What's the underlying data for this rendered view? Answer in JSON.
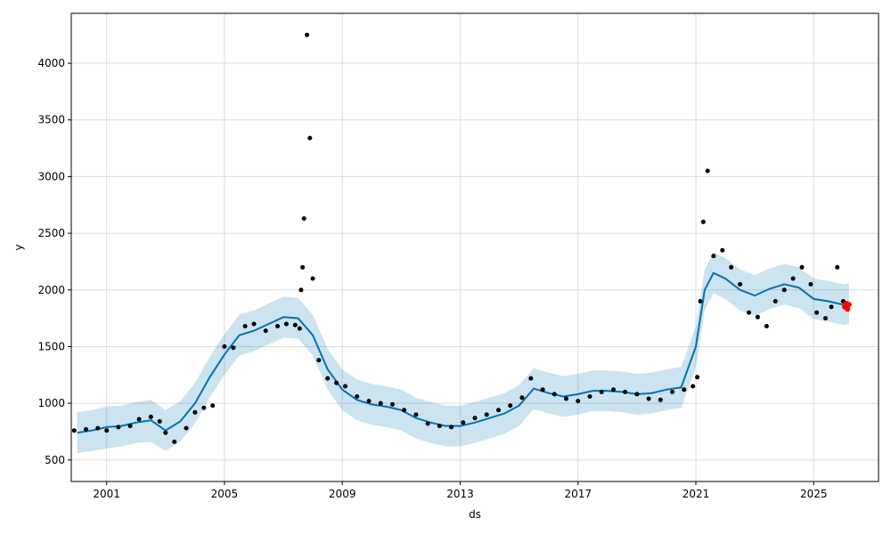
{
  "chart_data": {
    "type": "line",
    "title": "",
    "xlabel": "ds",
    "ylabel": "y",
    "xlim": [
      1999.8,
      2027.2
    ],
    "ylim": [
      310,
      4440
    ],
    "grid": true,
    "x_ticks": [
      2001,
      2005,
      2009,
      2013,
      2017,
      2021,
      2025
    ],
    "x_tick_labels": [
      "2001",
      "2005",
      "2009",
      "2013",
      "2017",
      "2021",
      "2025"
    ],
    "y_ticks": [
      500,
      1000,
      1500,
      2000,
      2500,
      3000,
      3500,
      4000
    ],
    "y_tick_labels": [
      "500",
      "1000",
      "1500",
      "2000",
      "2500",
      "3000",
      "3500",
      "4000"
    ],
    "colors": {
      "observed": "#000000",
      "forecast_line": "#0072B2",
      "uncertainty_band": "#0072B2",
      "highlight": "#ff0000",
      "grid": "#dddddd"
    },
    "forecast": {
      "x": [
        2000.0,
        2000.5,
        2001.0,
        2001.5,
        2002.0,
        2002.5,
        2003.0,
        2003.5,
        2004.0,
        2004.5,
        2005.0,
        2005.5,
        2006.0,
        2006.5,
        2007.0,
        2007.5,
        2008.0,
        2008.5,
        2009.0,
        2009.5,
        2010.0,
        2010.5,
        2011.0,
        2011.5,
        2012.0,
        2012.5,
        2013.0,
        2013.5,
        2014.0,
        2014.5,
        2015.0,
        2015.5,
        2016.0,
        2016.5,
        2017.0,
        2017.5,
        2018.0,
        2018.5,
        2019.0,
        2019.5,
        2020.0,
        2020.5,
        2021.0,
        2021.3,
        2021.6,
        2022.0,
        2022.5,
        2023.0,
        2023.5,
        2024.0,
        2024.5,
        2025.0,
        2025.5,
        2026.0,
        2026.2
      ],
      "yhat": [
        740,
        760,
        790,
        800,
        830,
        850,
        760,
        840,
        1000,
        1230,
        1430,
        1600,
        1640,
        1700,
        1760,
        1750,
        1600,
        1300,
        1120,
        1030,
        990,
        970,
        940,
        870,
        830,
        800,
        800,
        830,
        870,
        910,
        980,
        1130,
        1090,
        1060,
        1080,
        1110,
        1110,
        1100,
        1080,
        1090,
        1120,
        1140,
        1500,
        2000,
        2150,
        2100,
        2000,
        1950,
        2010,
        2050,
        2020,
        1920,
        1900,
        1870,
        1880
      ],
      "lower": [
        560,
        580,
        600,
        620,
        650,
        660,
        580,
        660,
        820,
        1050,
        1250,
        1420,
        1460,
        1520,
        1580,
        1570,
        1420,
        1120,
        940,
        850,
        810,
        790,
        760,
        690,
        650,
        620,
        620,
        650,
        690,
        730,
        800,
        950,
        910,
        880,
        900,
        930,
        930,
        920,
        900,
        910,
        940,
        960,
        1320,
        1820,
        1970,
        1920,
        1820,
        1770,
        1830,
        1870,
        1840,
        1740,
        1720,
        1690,
        1700
      ],
      "upper": [
        920,
        940,
        970,
        980,
        1010,
        1030,
        940,
        1020,
        1180,
        1410,
        1610,
        1780,
        1820,
        1880,
        1940,
        1930,
        1780,
        1480,
        1300,
        1210,
        1170,
        1150,
        1120,
        1050,
        1010,
        980,
        980,
        1010,
        1050,
        1090,
        1160,
        1310,
        1270,
        1240,
        1260,
        1290,
        1290,
        1280,
        1260,
        1270,
        1300,
        1320,
        1680,
        2180,
        2330,
        2280,
        2180,
        2130,
        2190,
        2230,
        2200,
        2100,
        2080,
        2050,
        2060
      ]
    },
    "observed": {
      "x": [
        1999.9,
        2000.3,
        2000.7,
        2001.0,
        2001.4,
        2001.8,
        2002.1,
        2002.5,
        2002.8,
        2003.0,
        2003.3,
        2003.7,
        2004.0,
        2004.3,
        2004.6,
        2005.0,
        2005.3,
        2005.7,
        2006.0,
        2006.4,
        2006.8,
        2007.1,
        2007.4,
        2007.55,
        2007.6,
        2007.65,
        2007.7,
        2007.8,
        2007.9,
        2008.0,
        2008.2,
        2008.5,
        2008.8,
        2009.1,
        2009.5,
        2009.9,
        2010.3,
        2010.7,
        2011.1,
        2011.5,
        2011.9,
        2012.3,
        2012.7,
        2013.1,
        2013.5,
        2013.9,
        2014.3,
        2014.7,
        2015.1,
        2015.4,
        2015.8,
        2016.2,
        2016.6,
        2017.0,
        2017.4,
        2017.8,
        2018.2,
        2018.6,
        2019.0,
        2019.4,
        2019.8,
        2020.2,
        2020.6,
        2020.9,
        2021.05,
        2021.15,
        2021.25,
        2021.4,
        2021.6,
        2021.9,
        2022.2,
        2022.5,
        2022.8,
        2023.1,
        2023.4,
        2023.7,
        2024.0,
        2024.3,
        2024.6,
        2024.9,
        2025.1,
        2025.4,
        2025.6,
        2025.8,
        2026.0
      ],
      "y": [
        760,
        770,
        780,
        760,
        790,
        800,
        860,
        880,
        840,
        740,
        660,
        780,
        920,
        960,
        980,
        1500,
        1490,
        1680,
        1700,
        1640,
        1680,
        1700,
        1690,
        1660,
        2000,
        2200,
        2630,
        4250,
        3340,
        2100,
        1380,
        1220,
        1180,
        1150,
        1060,
        1020,
        1000,
        990,
        940,
        900,
        820,
        800,
        790,
        830,
        870,
        900,
        940,
        980,
        1050,
        1220,
        1120,
        1080,
        1040,
        1020,
        1060,
        1100,
        1120,
        1100,
        1080,
        1040,
        1030,
        1100,
        1120,
        1150,
        1230,
        1900,
        2600,
        3050,
        2300,
        2350,
        2200,
        2050,
        1800,
        1760,
        1680,
        1900,
        2000,
        2100,
        2200,
        2050,
        1800,
        1750,
        1850,
        2200,
        1900
      ]
    },
    "highlight": {
      "x": [
        2026.05,
        2026.1,
        2026.15,
        2026.2
      ],
      "y": [
        1850,
        1880,
        1830,
        1870
      ]
    }
  }
}
